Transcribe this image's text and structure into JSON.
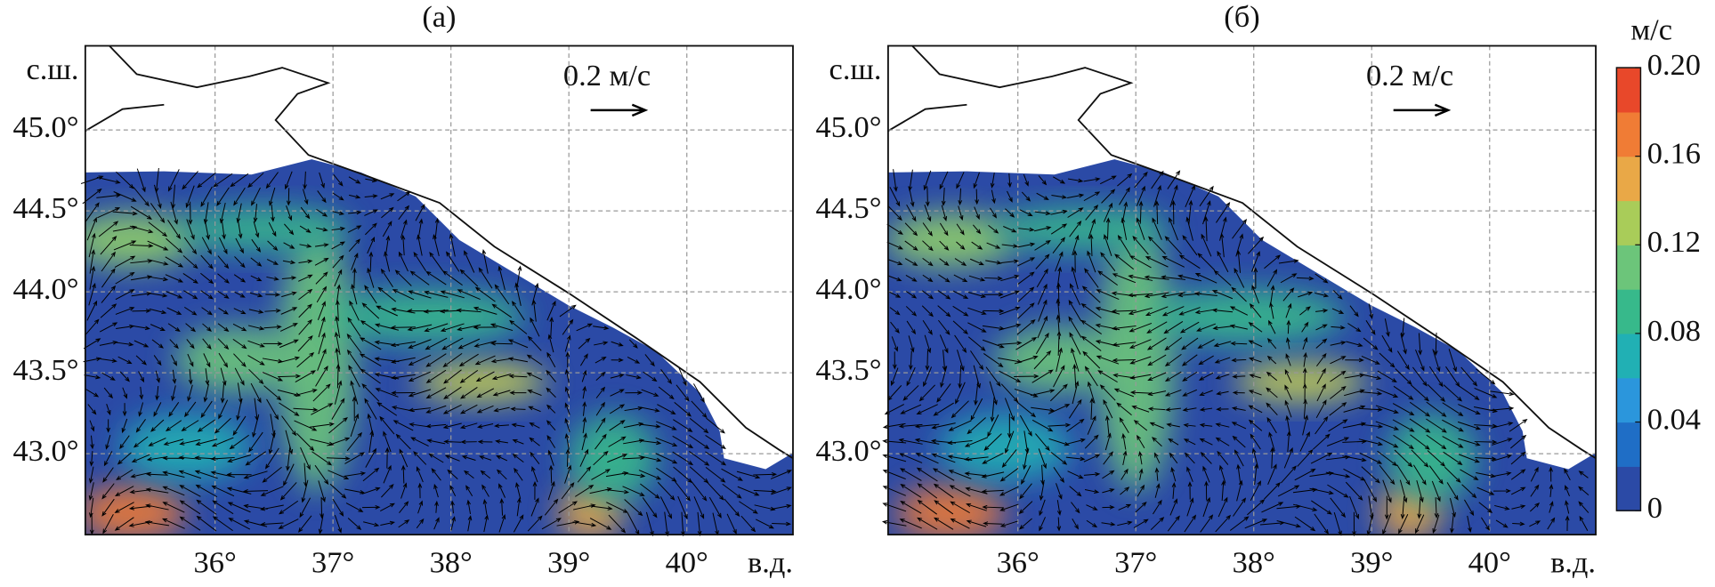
{
  "chart_data": [
    {
      "type": "vector-field",
      "title": "(а)",
      "x_label": "в.д.",
      "y_label": "с.ш.",
      "scale_label": "0.2 м/с",
      "xlim": [
        34.9,
        40.9
      ],
      "ylim": [
        42.5,
        45.52
      ],
      "xticks": [
        {
          "value": 36,
          "label": "36°"
        },
        {
          "value": 37,
          "label": "37°"
        },
        {
          "value": 38,
          "label": "38°"
        },
        {
          "value": 39,
          "label": "39°"
        },
        {
          "value": 40,
          "label": "40°"
        }
      ],
      "yticks": [
        {
          "value": 43,
          "label": "43.0°"
        },
        {
          "value": 43.5,
          "label": "43.5°"
        },
        {
          "value": 44,
          "label": "44.0°"
        },
        {
          "value": 44.5,
          "label": "44.5°"
        },
        {
          "value": 45,
          "label": "45.0°"
        }
      ],
      "grid": true
    },
    {
      "type": "vector-field",
      "title": "(б)",
      "x_label": "в.д.",
      "y_label": "с.ш.",
      "scale_label": "0.2 м/с",
      "xlim": [
        34.9,
        40.9
      ],
      "ylim": [
        42.5,
        45.52
      ],
      "xticks": [
        {
          "value": 36,
          "label": "36°"
        },
        {
          "value": 37,
          "label": "37°"
        },
        {
          "value": 38,
          "label": "38°"
        },
        {
          "value": 39,
          "label": "39°"
        },
        {
          "value": 40,
          "label": "40°"
        }
      ],
      "yticks": [
        {
          "value": 43,
          "label": "43.0°"
        },
        {
          "value": 43.5,
          "label": "43.5°"
        },
        {
          "value": 44,
          "label": "44.0°"
        },
        {
          "value": 44.5,
          "label": "44.5°"
        },
        {
          "value": 45,
          "label": "45.0°"
        }
      ],
      "grid": true
    }
  ],
  "colorbar": {
    "label": "м/с",
    "lim": [
      0,
      0.2
    ],
    "ticks": [
      0,
      0.04,
      0.08,
      0.12,
      0.16,
      {
        "value": 0.2,
        "label": "0.20"
      }
    ],
    "colors": [
      "#2b4aa6",
      "#1f6ec6",
      "#2b96dc",
      "#21b0b4",
      "#37b98b",
      "#6cc57a",
      "#a9cc59",
      "#e9a847",
      "#f07c35",
      "#e8482a"
    ]
  }
}
